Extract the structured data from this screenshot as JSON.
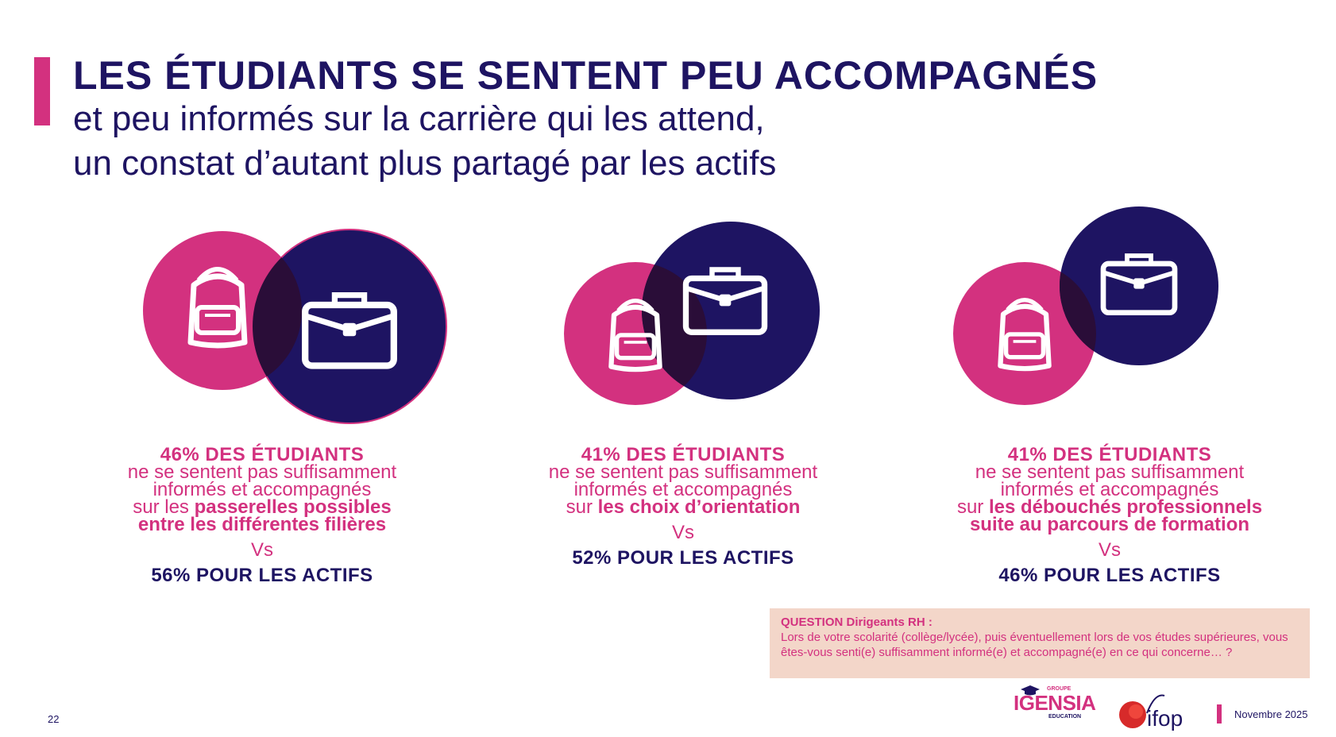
{
  "header": {
    "title": "LES ÉTUDIANTS SE SENTENT PEU ACCOMPAGNÉS",
    "subtitle_line1": "et peu informés sur la carrière qui les attend,",
    "subtitle_line2": "un constat d’autant plus partagé par les actifs"
  },
  "stats": [
    {
      "pct_label": "46% DES ÉTUDIANTS",
      "line1": "ne se sentent pas suffisamment",
      "line2": "informés et accompagnés",
      "prefix": "sur les ",
      "highlight1": "passerelles possibles",
      "highlight2": "entre les différentes filières",
      "vs": "Vs",
      "actifs": "56% POUR LES ACTIFS"
    },
    {
      "pct_label": "41% DES ÉTUDIANTS",
      "line1": "ne se sentent pas suffisamment",
      "line2": "informés et accompagnés",
      "prefix": "sur ",
      "highlight1": "les choix d’orientation",
      "vs": "Vs",
      "actifs": "52% POUR LES ACTIFS"
    },
    {
      "pct_label": "41% DES ÉTUDIANTS",
      "line1": "ne se sentent pas suffisamment",
      "line2": "informés et accompagnés",
      "prefix": "sur ",
      "highlight1": "les débouchés professionnels",
      "highlight2": "suite au parcours de formation",
      "vs": "Vs",
      "actifs": "46% POUR LES ACTIFS"
    }
  ],
  "question": {
    "heading": "QUESTION Dirigeants RH :",
    "text": "Lors de votre scolarité (collège/lycée), puis éventuellement lors de vos études supérieures, vous êtes-vous senti(e) suffisamment informé(e) et accompagné(e) en ce qui concerne… ?"
  },
  "footer": {
    "page_number": "22",
    "logo_groupe": "GROUPE",
    "logo_igensia": "IGENSIA",
    "logo_education": "EDUCATION",
    "logo_ifop": "ifop",
    "date": "Novembre 2025"
  },
  "icons": [
    "backpack-icon",
    "briefcase-icon"
  ],
  "colors": {
    "pink": "#d3317f",
    "navy": "#1e1462",
    "overlap": "#2a0d38",
    "question_bg": "#f3d6c9"
  }
}
